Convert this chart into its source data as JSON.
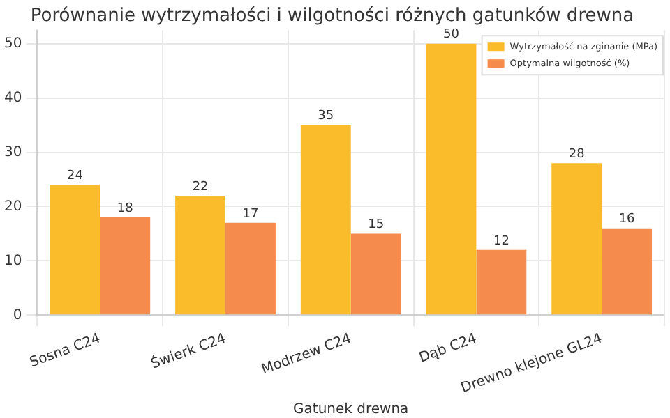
{
  "chart_data": {
    "type": "bar",
    "title": "Porównanie wytrzymałości i wilgotności różnych gatunków drewna",
    "xlabel": "Gatunek drewna",
    "categories": [
      "Sosna C24",
      "Świerk C24",
      "Modrzew C24",
      "Dąb C24",
      "Drewno klejone GL24"
    ],
    "series": [
      {
        "name": "Wytrzymałość na zginanie (MPa)",
        "color": "#fbbc2c",
        "values": [
          24,
          22,
          35,
          50,
          28
        ]
      },
      {
        "name": "Optymalna wilgotność (%)",
        "color": "#f58b4c",
        "values": [
          18,
          17,
          15,
          12,
          16
        ]
      }
    ],
    "ylim": [
      0,
      52.5
    ],
    "yticks": [
      0,
      10,
      20,
      30,
      40,
      50
    ],
    "grid": true,
    "legend": "top right",
    "data_labels": true
  }
}
